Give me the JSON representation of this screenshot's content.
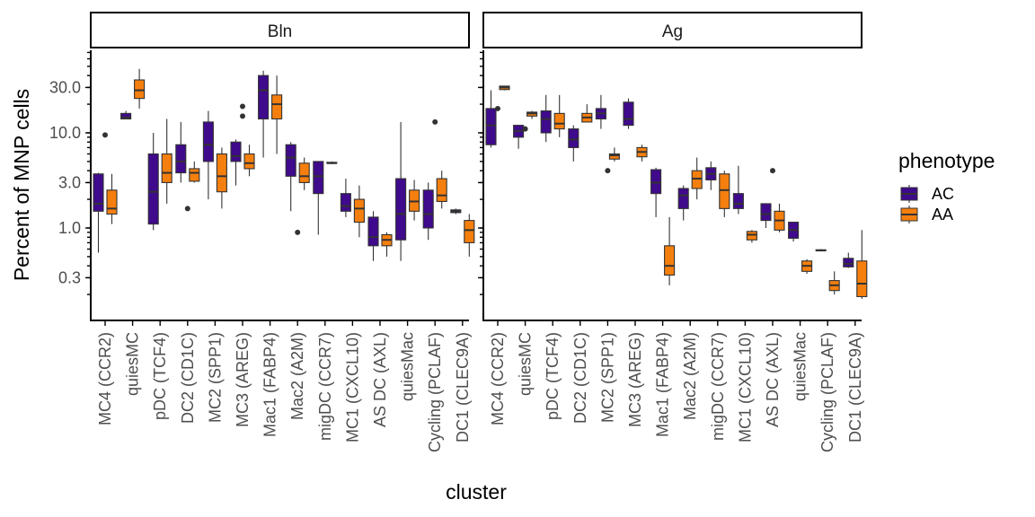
{
  "chart_data": {
    "type": "boxplot",
    "xlabel": "cluster",
    "ylabel": "Percent of MNP cells",
    "yscale": "log10",
    "ylim": [
      0.15,
      70
    ],
    "yticks": [
      {
        "value": 0.3,
        "label": "0.3"
      },
      {
        "value": 1,
        "label": "1.0"
      },
      {
        "value": 3,
        "label": "3.0"
      },
      {
        "value": 10,
        "label": "10.0"
      },
      {
        "value": 30,
        "label": "30.0"
      }
    ],
    "categories": [
      "MC4 (CCR2)",
      "quiesMC",
      "pDC (TCF4)",
      "DC2 (CD1C)",
      "MC2 (SPP1)",
      "MC3 (AREG)",
      "Mac1 (FABP4)",
      "Mac2 (A2M)",
      "migDC (CCR7)",
      "MC1 (CXCL10)",
      "AS DC (AXL)",
      "quiesMac",
      "Cycling (PCLAF)",
      "DC1 (CLEC9A)"
    ],
    "legend": {
      "title": "phenotype",
      "position": "right",
      "entries": [
        {
          "name": "AC",
          "color": "#3f0a8c"
        },
        {
          "name": "AA",
          "color": "#f57f0e"
        }
      ]
    },
    "grid": false,
    "panels": [
      {
        "title": "Bln",
        "series": [
          {
            "name": "AC",
            "boxes": [
              [
                0.55,
                1.5,
                1.8,
                3.7,
                3.8
              ],
              [
                14,
                14,
                14.5,
                16,
                17
              ],
              [
                0.95,
                1.1,
                2.4,
                6,
                10
              ],
              [
                3,
                3.8,
                5,
                7.5,
                13
              ],
              [
                2,
                5,
                7.5,
                13,
                17
              ],
              [
                2.8,
                5,
                5.7,
                8,
                8.5
              ],
              [
                5.5,
                14,
                28,
                40,
                45
              ],
              [
                1.5,
                3.5,
                5.5,
                7.5,
                8
              ],
              [
                0.85,
                2.3,
                3.5,
                5,
                5
              ],
              [
                1.3,
                1.5,
                1.7,
                2.3,
                3.3
              ],
              [
                0.45,
                0.65,
                0.8,
                1.3,
                1.5
              ],
              [
                0.45,
                0.75,
                1.4,
                3.3,
                13
              ],
              [
                0.75,
                1,
                1.4,
                2.5,
                3
              ],
              [
                1.4,
                1.45,
                1.5,
                1.55,
                1.6
              ]
            ],
            "outliers": [
              [],
              [],
              [],
              [],
              [],
              [],
              [],
              [],
              [],
              [],
              [],
              [],
              [],
              []
            ]
          },
          {
            "name": "AA",
            "boxes": [
              [
                1.1,
                1.4,
                1.6,
                2.5,
                3.7
              ],
              [
                18,
                23,
                28,
                36,
                47
              ],
              [
                1.8,
                3,
                3.8,
                6,
                14
              ],
              [
                3,
                3.1,
                3.8,
                4.2,
                5
              ],
              [
                1.6,
                2.4,
                3.5,
                6,
                7
              ],
              [
                3.5,
                4.2,
                4.8,
                6,
                7.5
              ],
              [
                6,
                14,
                20,
                25,
                40
              ],
              [
                2.5,
                3,
                3.5,
                4.8,
                5.5
              ],
              [
                4.7,
                4.8,
                4.8,
                4.9,
                5
              ],
              [
                0.8,
                1.15,
                1.6,
                2,
                2.8
              ],
              [
                0.5,
                0.65,
                0.75,
                0.85,
                0.9
              ],
              [
                1.2,
                1.5,
                1.9,
                2.5,
                3.2
              ],
              [
                1.6,
                1.9,
                2.2,
                3.3,
                4
              ],
              [
                0.5,
                0.7,
                0.95,
                1.2,
                1.4
              ]
            ],
            "outliers": [
              [
                9.5
              ],
              [],
              [],
              [
                1.6
              ],
              [],
              [
                19,
                15
              ],
              [],
              [
                0.9
              ],
              [],
              [],
              [],
              [],
              [
                13
              ],
              []
            ]
          }
        ]
      },
      {
        "title": "Ag",
        "series": [
          {
            "name": "AC",
            "boxes": [
              [
                7,
                7.5,
                12,
                18,
                28
              ],
              [
                6.8,
                9,
                10.5,
                12,
                12
              ],
              [
                8,
                10,
                14,
                17,
                25
              ],
              [
                5,
                7,
                8.5,
                11,
                12
              ],
              [
                11,
                14,
                16,
                18,
                25
              ],
              [
                11,
                12,
                14,
                21,
                23
              ],
              [
                1.3,
                2.3,
                3,
                4.1,
                4.3
              ],
              [
                1.2,
                1.6,
                2.2,
                2.6,
                2.8
              ],
              [
                2.5,
                3.2,
                3.7,
                4.3,
                5
              ],
              [
                1.4,
                1.6,
                1.8,
                2.3,
                4.5
              ],
              [
                1,
                1.2,
                1.4,
                1.8,
                1.8
              ],
              [
                0.72,
                0.78,
                0.95,
                1.15,
                1.15
              ],
              [
                0.58,
                0.58,
                0.58,
                0.59,
                0.6
              ],
              [
                0.38,
                0.39,
                0.42,
                0.48,
                0.55
              ]
            ],
            "outliers": [
              [],
              [],
              [],
              [],
              [],
              [],
              [],
              [],
              [],
              [],
              [],
              [],
              [],
              []
            ]
          },
          {
            "name": "AA",
            "boxes": [
              [
                28,
                28.5,
                30,
                31,
                31
              ],
              [
                14,
                15,
                16,
                16.5,
                17
              ],
              [
                9,
                11,
                12.5,
                16,
                25
              ],
              [
                13,
                13,
                14.5,
                16,
                20
              ],
              [
                5,
                5.3,
                5.8,
                6,
                7
              ],
              [
                5,
                5.6,
                6.3,
                7,
                7.5
              ],
              [
                0.25,
                0.32,
                0.4,
                0.65,
                1.3
              ],
              [
                2,
                2.6,
                3.3,
                4,
                5.5
              ],
              [
                1.3,
                1.6,
                2.5,
                3.7,
                4
              ],
              [
                0.7,
                0.75,
                0.85,
                0.92,
                0.95
              ],
              [
                0.9,
                0.95,
                1.2,
                1.5,
                1.8
              ],
              [
                0.33,
                0.35,
                0.4,
                0.45,
                0.47
              ],
              [
                0.2,
                0.22,
                0.25,
                0.28,
                0.35
              ],
              [
                0.18,
                0.19,
                0.26,
                0.45,
                0.95
              ]
            ],
            "outliers": [
              [
                18
              ],
              [
                11
              ],
              [],
              [],
              [
                4
              ],
              [],
              [],
              [],
              [],
              [],
              [
                4
              ],
              [],
              [],
              []
            ]
          }
        ]
      }
    ]
  }
}
